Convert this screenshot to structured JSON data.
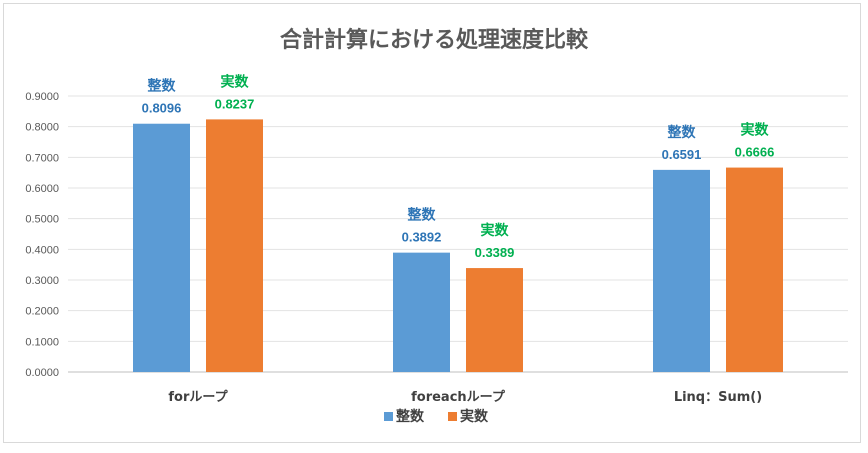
{
  "chart_data": {
    "type": "bar",
    "title": "合計計算における処理速度比較",
    "categories": [
      "forループ",
      "foreachループ",
      "Linq：Sum()"
    ],
    "series": [
      {
        "name": "整数",
        "color": "#5b9bd5",
        "label_color": "#2e75b6",
        "values": [
          0.8096,
          0.3892,
          0.6591
        ],
        "labels": [
          "0.8096",
          "0.3892",
          "0.6591"
        ]
      },
      {
        "name": "実数",
        "color": "#ed7d31",
        "label_color": "#00b050",
        "values": [
          0.8237,
          0.3389,
          0.6666
        ],
        "labels": [
          "0.8237",
          "0.3389",
          "0.6666"
        ]
      }
    ],
    "ylim": [
      0,
      0.9
    ],
    "y_ticks": [
      "0.0000",
      "0.1000",
      "0.2000",
      "0.3000",
      "0.4000",
      "0.5000",
      "0.6000",
      "0.7000",
      "0.8000",
      "0.9000"
    ],
    "xlabel": "",
    "ylabel": "",
    "grid": true,
    "legend_position": "bottom"
  }
}
